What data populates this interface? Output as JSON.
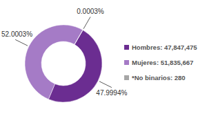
{
  "chart_data": {
    "type": "donut",
    "categories": [
      "Hombres: 47,847,475",
      "Mujeres: 51,835,667",
      "*No binarios: 280"
    ],
    "values": [
      47.9994,
      52.0003,
      0.0003
    ],
    "value_labels": [
      "47.9994%",
      "52.0003%",
      "0.0003%"
    ],
    "colors": [
      "#6b2d91",
      "#a57bc6",
      "#a6a6a6"
    ],
    "data_labels": true,
    "legend": "right"
  }
}
